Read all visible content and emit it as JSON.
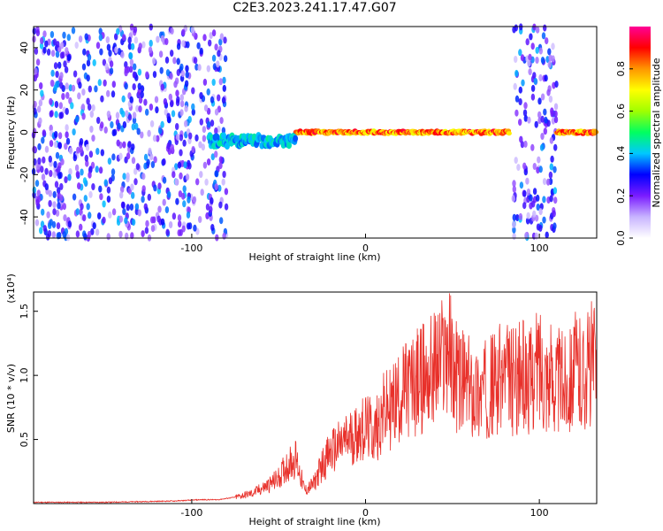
{
  "page": {
    "title": "C2E3.2023.241.17.47.G07"
  },
  "chart_data": [
    {
      "type": "heatmap",
      "title": "C2E3.2023.241.17.47.G07",
      "xlabel": "Height of straight line (km)",
      "ylabel": "Frequency (Hz)",
      "xlim": [
        -191,
        133
      ],
      "ylim": [
        -50,
        50
      ],
      "x_ticks": [
        -100,
        0,
        100
      ],
      "y_ticks": [
        -40,
        -20,
        0,
        20,
        40
      ],
      "colorbar": {
        "label": "Normalized spectral amplitude",
        "range": [
          0.0,
          1.0
        ],
        "ticks": [
          0.0,
          0.2,
          0.4,
          0.6,
          0.8
        ],
        "colors": [
          "#ffffff",
          "#c8b4ff",
          "#7a1cff",
          "#0000ff",
          "#00c8ff",
          "#00ff60",
          "#a0ff00",
          "#ffff00",
          "#ff9600",
          "#ff0000",
          "#ff0096"
        ]
      },
      "features": [
        {
          "segment": "noise",
          "x_range": [
            -191,
            -80
          ],
          "freq": 0,
          "amplitude": 0.3
        },
        {
          "segment": "signal",
          "x_range": [
            -90,
            -40
          ],
          "freq": -4,
          "amplitude": 0.45
        },
        {
          "segment": "signal",
          "x_range": [
            -40,
            83
          ],
          "freq": 0,
          "amplitude": 0.9
        },
        {
          "segment": "noise",
          "x_range": [
            85,
            110
          ],
          "freq": 0,
          "amplitude": 0.3
        },
        {
          "segment": "signal",
          "x_range": [
            110,
            133
          ],
          "freq": 0,
          "amplitude": 0.9
        }
      ]
    },
    {
      "type": "line",
      "xlabel": "Height of straight line (km)",
      "ylabel": "SNR (10 * v/v)",
      "y_scale_note": "(x10⁴)",
      "xlim": [
        -191,
        133
      ],
      "ylim": [
        0,
        1.65
      ],
      "x_ticks": [
        -100,
        0,
        100
      ],
      "y_ticks": [
        0.5,
        1.0,
        1.5
      ],
      "y_tick_labels": [
        "0.5",
        "1.0",
        "1.5"
      ],
      "color": "#e8302a",
      "x": [
        -191,
        -170,
        -150,
        -130,
        -110,
        -95,
        -85,
        -75,
        -65,
        -55,
        -50,
        -45,
        -40,
        -35,
        -30,
        -25,
        -20,
        -15,
        -10,
        -5,
        0,
        5,
        10,
        15,
        20,
        25,
        30,
        35,
        40,
        45,
        48,
        50,
        55,
        60,
        65,
        70,
        75,
        80,
        85,
        90,
        95,
        100,
        105,
        110,
        115,
        120,
        125,
        130,
        133
      ],
      "values": [
        0.01,
        0.01,
        0.01,
        0.015,
        0.02,
        0.03,
        0.03,
        0.05,
        0.08,
        0.15,
        0.2,
        0.3,
        0.35,
        0.1,
        0.15,
        0.3,
        0.4,
        0.45,
        0.5,
        0.55,
        0.6,
        0.55,
        0.7,
        0.75,
        0.85,
        0.9,
        0.95,
        1.0,
        1.05,
        1.15,
        1.25,
        1.05,
        0.95,
        0.9,
        0.85,
        0.9,
        0.95,
        1.0,
        0.95,
        1.0,
        0.95,
        1.1,
        1.0,
        0.95,
        0.95,
        1.05,
        1.0,
        1.1,
        1.05
      ]
    }
  ]
}
